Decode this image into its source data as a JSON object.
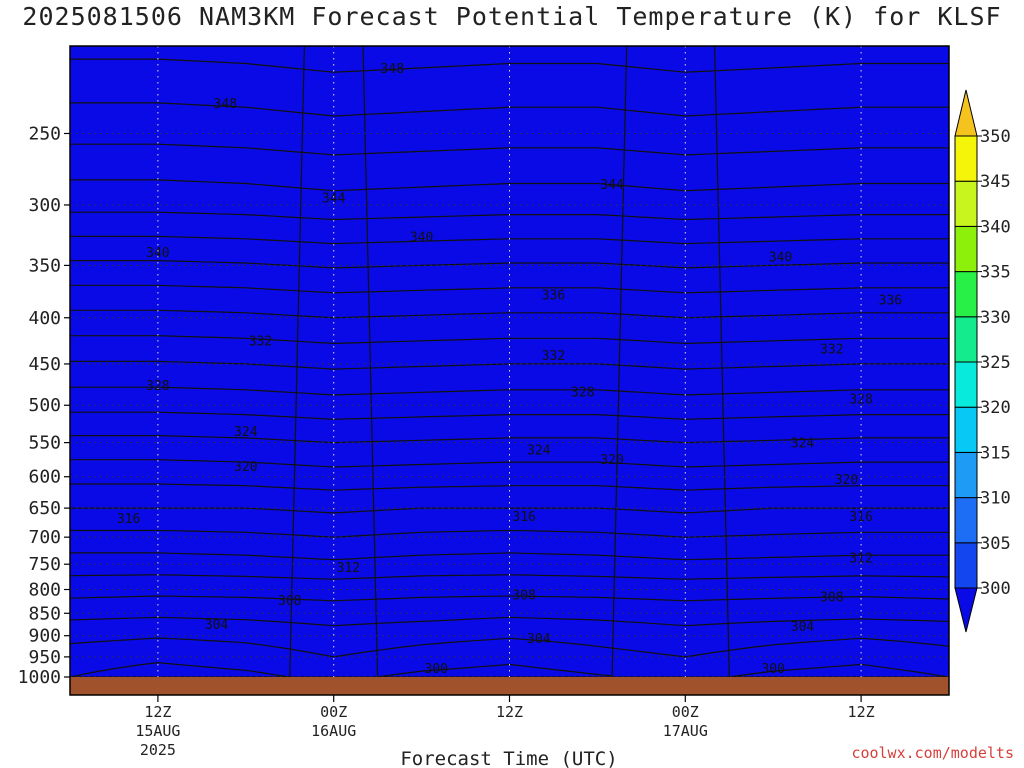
{
  "title": "2025081506 NAM3KM Forecast Potential Temperature (K) for KLSF",
  "credit": "coolwx.com/modelts",
  "chart_data": {
    "type": "heatmap",
    "title": "2025081506 NAM3KM Forecast Potential Temperature (K) for KLSF",
    "xlabel": "Forecast Time (UTC)",
    "ylabel": "",
    "y_axis": {
      "scale": "log",
      "reversed": true,
      "ticks": [
        250,
        300,
        350,
        400,
        450,
        500,
        550,
        600,
        650,
        700,
        750,
        800,
        850,
        900,
        950,
        1000
      ],
      "range": [
        200,
        1000
      ]
    },
    "x_axis": {
      "ticks": [
        {
          "hour": 6,
          "lines": [
            "12Z",
            "15AUG",
            "2025"
          ]
        },
        {
          "hour": 18,
          "lines": [
            "00Z",
            "16AUG"
          ]
        },
        {
          "hour": 30,
          "lines": [
            "12Z"
          ]
        },
        {
          "hour": 42,
          "lines": [
            "00Z",
            "17AUG"
          ]
        },
        {
          "hour": 54,
          "lines": [
            "12Z"
          ]
        }
      ],
      "range_hours": [
        0,
        60
      ]
    },
    "grid": true,
    "colorbar": {
      "levels": [
        300,
        305,
        310,
        315,
        320,
        325,
        330,
        335,
        340,
        345,
        350
      ],
      "colors": [
        "#0a0ae6",
        "#1446f0",
        "#1e6ef5",
        "#1e9bf5",
        "#08c8f5",
        "#08ebdc",
        "#14eb8c",
        "#28f046",
        "#8cf00a",
        "#c8f51e",
        "#f5f50a",
        "#f5c31e"
      ],
      "extend": "both"
    },
    "contour_interval": 2,
    "series": [
      {
        "pressure": 1000,
        "theta": [
          302.0,
          301.0,
          301.5,
          302.5,
          301.5,
          301.0,
          301.8,
          302.5,
          301.5,
          301.0,
          302.0
        ]
      },
      {
        "pressure": 950,
        "theta": [
          303.0,
          302.4,
          303.0,
          304.0,
          303.2,
          302.6,
          303.4,
          304.0,
          303.2,
          302.6,
          303.4
        ]
      },
      {
        "pressure": 900,
        "theta": [
          304.6,
          304.2,
          304.5,
          305.2,
          304.6,
          304.2,
          304.6,
          305.2,
          304.6,
          304.2,
          304.6
        ]
      },
      {
        "pressure": 850,
        "theta": [
          306.6,
          306.4,
          306.6,
          307.0,
          306.8,
          306.4,
          306.6,
          307.0,
          306.8,
          306.6,
          306.8
        ]
      },
      {
        "pressure": 800,
        "theta": [
          308.8,
          308.6,
          308.7,
          308.9,
          308.6,
          308.6,
          308.7,
          308.9,
          308.7,
          308.6,
          308.8
        ]
      },
      {
        "pressure": 750,
        "theta": [
          311.0,
          311.0,
          311.2,
          311.6,
          311.2,
          311.0,
          311.2,
          311.6,
          311.4,
          311.2,
          311.2
        ]
      },
      {
        "pressure": 700,
        "theta": [
          313.4,
          313.4,
          313.6,
          314.0,
          313.6,
          313.4,
          313.6,
          314.0,
          313.8,
          313.6,
          313.6
        ]
      },
      {
        "pressure": 650,
        "theta": [
          316.0,
          316.0,
          316.0,
          316.4,
          316.0,
          316.0,
          316.0,
          316.4,
          316.0,
          316.0,
          316.0
        ]
      },
      {
        "pressure": 600,
        "theta": [
          318.6,
          318.6,
          318.8,
          319.2,
          319.0,
          318.8,
          318.8,
          319.2,
          319.0,
          318.8,
          318.8
        ]
      },
      {
        "pressure": 550,
        "theta": [
          321.4,
          321.4,
          321.6,
          322.0,
          321.8,
          321.6,
          321.6,
          322.0,
          321.8,
          321.6,
          321.6
        ]
      },
      {
        "pressure": 500,
        "theta": [
          324.6,
          324.6,
          324.8,
          325.2,
          325.0,
          324.8,
          324.8,
          325.2,
          325.0,
          324.8,
          324.8
        ]
      },
      {
        "pressure": 450,
        "theta": [
          327.8,
          327.8,
          328.0,
          328.4,
          328.2,
          328.0,
          328.0,
          328.4,
          328.2,
          328.0,
          328.0
        ]
      },
      {
        "pressure": 400,
        "theta": [
          331.4,
          331.4,
          331.6,
          332.0,
          331.8,
          331.6,
          331.6,
          332.0,
          331.8,
          331.6,
          331.6
        ]
      },
      {
        "pressure": 350,
        "theta": [
          335.6,
          335.6,
          335.8,
          336.2,
          336.0,
          335.8,
          335.8,
          336.2,
          336.0,
          335.8,
          335.8
        ]
      },
      {
        "pressure": 300,
        "theta": [
          340.6,
          340.6,
          340.8,
          341.2,
          341.0,
          340.8,
          340.8,
          341.2,
          341.0,
          340.8,
          340.8
        ]
      },
      {
        "pressure": 250,
        "theta": [
          344.6,
          344.6,
          344.8,
          345.2,
          345.0,
          344.8,
          344.8,
          345.2,
          345.0,
          344.8,
          344.8
        ]
      },
      {
        "pressure": 200,
        "theta": [
          348.6,
          348.6,
          348.8,
          349.2,
          349.0,
          348.8,
          348.8,
          349.2,
          349.0,
          348.8,
          348.8
        ]
      }
    ],
    "times_hours": [
      0,
      6,
      12,
      18,
      24,
      30,
      36,
      42,
      48,
      54,
      60
    ],
    "contour_labels": [
      {
        "value": "348",
        "hour": 22,
        "pressure": 212
      },
      {
        "value": "348",
        "hour": 10.6,
        "pressure": 232
      },
      {
        "value": "344",
        "hour": 37,
        "pressure": 285
      },
      {
        "value": "344",
        "hour": 18,
        "pressure": 295
      },
      {
        "value": "340",
        "hour": 6,
        "pressure": 339
      },
      {
        "value": "340",
        "hour": 24,
        "pressure": 326
      },
      {
        "value": "340",
        "hour": 48.5,
        "pressure": 343
      },
      {
        "value": "336",
        "hour": 33,
        "pressure": 378
      },
      {
        "value": "336",
        "hour": 56,
        "pressure": 383
      },
      {
        "value": "332",
        "hour": 13,
        "pressure": 425
      },
      {
        "value": "332",
        "hour": 33,
        "pressure": 441
      },
      {
        "value": "332",
        "hour": 52,
        "pressure": 434
      },
      {
        "value": "328",
        "hour": 6,
        "pressure": 476
      },
      {
        "value": "328",
        "hour": 35,
        "pressure": 484
      },
      {
        "value": "328",
        "hour": 54,
        "pressure": 493
      },
      {
        "value": "324",
        "hour": 12,
        "pressure": 535
      },
      {
        "value": "324",
        "hour": 32,
        "pressure": 561
      },
      {
        "value": "324",
        "hour": 50,
        "pressure": 551
      },
      {
        "value": "320",
        "hour": 12,
        "pressure": 585
      },
      {
        "value": "320",
        "hour": 37,
        "pressure": 575
      },
      {
        "value": "320",
        "hour": 53,
        "pressure": 605
      },
      {
        "value": "316",
        "hour": 4,
        "pressure": 668
      },
      {
        "value": "316",
        "hour": 31,
        "pressure": 665
      },
      {
        "value": "316",
        "hour": 54,
        "pressure": 665
      },
      {
        "value": "312",
        "hour": 19,
        "pressure": 757
      },
      {
        "value": "312",
        "hour": 54,
        "pressure": 739
      },
      {
        "value": "308",
        "hour": 15,
        "pressure": 824
      },
      {
        "value": "308",
        "hour": 31,
        "pressure": 812
      },
      {
        "value": "308",
        "hour": 52,
        "pressure": 816
      },
      {
        "value": "304",
        "hour": 10,
        "pressure": 876
      },
      {
        "value": "304",
        "hour": 32,
        "pressure": 908
      },
      {
        "value": "304",
        "hour": 50,
        "pressure": 880
      },
      {
        "value": "300",
        "hour": 25,
        "pressure": 980
      },
      {
        "value": "300",
        "hour": 48,
        "pressure": 980
      }
    ]
  }
}
